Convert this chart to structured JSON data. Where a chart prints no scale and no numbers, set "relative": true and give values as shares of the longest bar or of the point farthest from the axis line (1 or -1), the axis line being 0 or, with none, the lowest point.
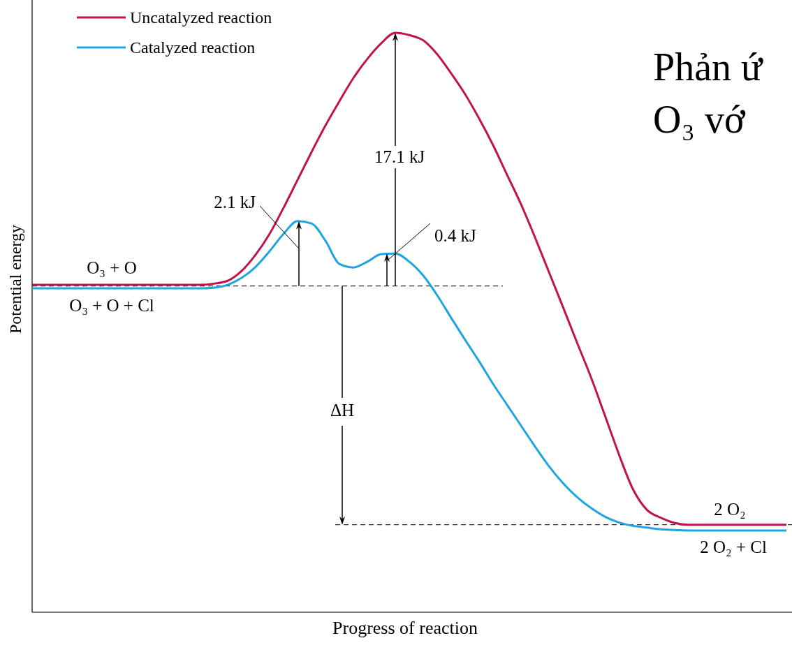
{
  "chart_data": {
    "type": "line",
    "title": "Phản ứ",
    "subtitle": "O₃ vớ",
    "xlabel": "Progress of reaction",
    "ylabel": "Potential energy",
    "relative": true,
    "legend": "top left",
    "line_style": "solid",
    "categories": [
      null,
      null,
      null,
      null,
      null,
      null,
      null,
      null,
      null,
      null,
      null,
      null,
      null,
      null,
      null,
      null,
      null,
      null,
      null,
      null,
      null,
      null,
      null,
      null,
      null,
      null,
      null,
      null,
      null,
      null,
      null,
      null,
      null,
      null,
      null,
      null,
      null,
      null,
      null,
      null,
      null,
      null,
      null,
      null,
      null,
      null,
      null,
      null,
      null,
      null,
      null,
      null,
      null,
      null,
      null
    ],
    "series": [
      {
        "name": "Uncatalyzed reaction",
        "color": "#c0144c",
        "values": [
          0.565,
          0.565,
          0.565,
          0.565,
          0.565,
          0.565,
          0.565,
          0.565,
          0.565,
          0.565,
          0.565,
          0.565,
          0.565,
          0.567,
          0.572,
          0.589,
          0.617,
          0.653,
          0.698,
          0.746,
          0.794,
          0.84,
          0.882,
          0.922,
          0.955,
          0.982,
          1,
          0.996,
          0.987,
          0.963,
          0.93,
          0.894,
          0.852,
          0.806,
          0.755,
          0.704,
          0.647,
          0.587,
          0.527,
          0.466,
          0.406,
          0.34,
          0.273,
          0.213,
          0.177,
          0.163,
          0.154,
          0.151,
          0.151,
          0.151,
          0.151,
          0.151,
          0.151,
          0.151,
          0.151
        ]
      },
      {
        "name": "Catalyzed reaction",
        "color": "#1ea5e0",
        "values": [
          0.559,
          0.559,
          0.559,
          0.559,
          0.559,
          0.559,
          0.559,
          0.559,
          0.559,
          0.559,
          0.559,
          0.559,
          0.559,
          0.56,
          0.565,
          0.577,
          0.596,
          0.623,
          0.653,
          0.675,
          0.671,
          0.641,
          0.601,
          0.595,
          0.605,
          0.618,
          0.619,
          0.605,
          0.581,
          0.547,
          0.508,
          0.47,
          0.433,
          0.394,
          0.358,
          0.322,
          0.286,
          0.252,
          0.223,
          0.199,
          0.18,
          0.165,
          0.155,
          0.149,
          0.146,
          0.143,
          0.142,
          0.141,
          0.141,
          0.141,
          0.141,
          0.141,
          0.141,
          0.141,
          0.141
        ]
      }
    ],
    "ref_lines": [
      {
        "axis": "y",
        "value": 0.563,
        "line_style": "dashed",
        "color": "#333333"
      },
      {
        "axis": "y",
        "value": 0.151,
        "line_style": "dashed",
        "color": "#333333"
      }
    ],
    "annotations": [
      "O₃ + O",
      "O₃ + O + Cl",
      "2.1 kJ",
      "17.1 kJ",
      "0.4 kJ",
      "ΔH",
      "2 O₂",
      "2 O₂ + Cl"
    ]
  }
}
